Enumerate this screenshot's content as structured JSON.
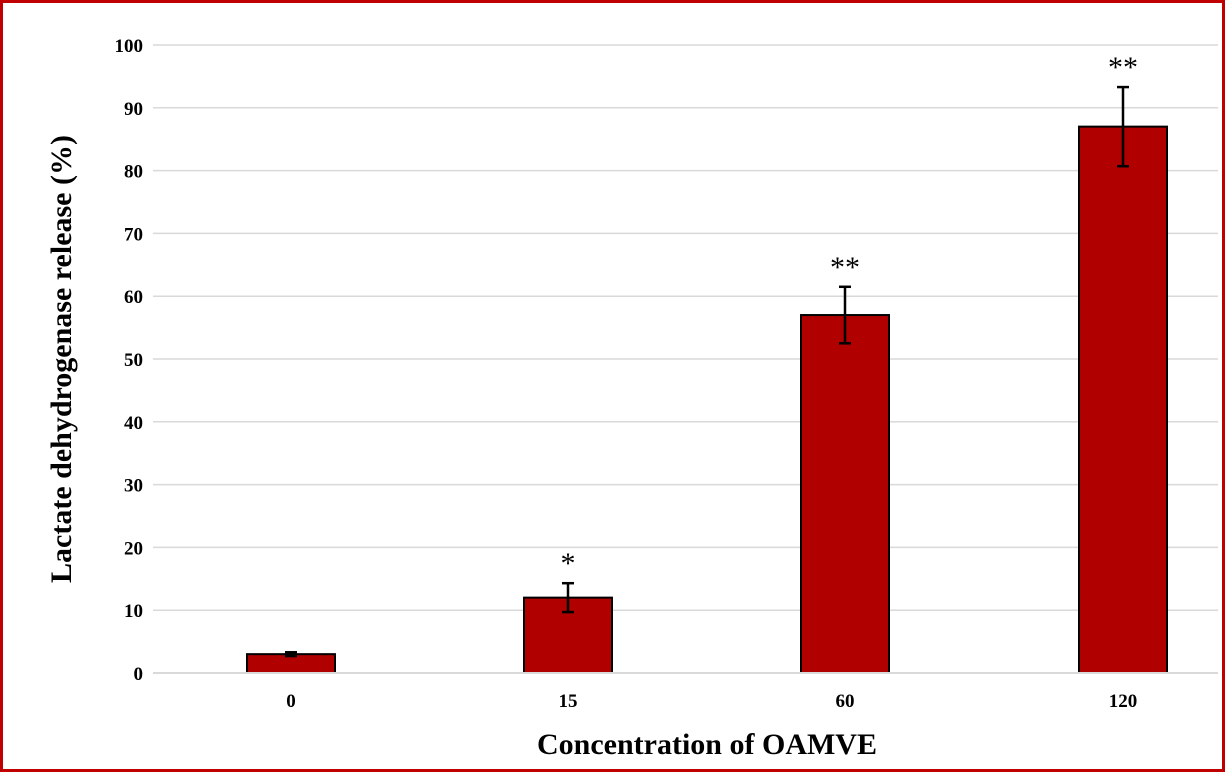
{
  "chart_data": {
    "type": "bar",
    "title": "",
    "xlabel": "Concentration of OAMVE",
    "ylabel": "Lactate dehydrogenase release (%)",
    "categories": [
      "0",
      "15",
      "60",
      "120"
    ],
    "values": [
      3,
      12,
      57,
      87
    ],
    "errors": [
      0.3,
      2.3,
      4.5,
      6.3
    ],
    "significance": [
      "",
      "*",
      "**",
      "**"
    ],
    "ylim": [
      0,
      100
    ],
    "yticks": [
      "0",
      "10",
      "20",
      "30",
      "40",
      "50",
      "60",
      "70",
      "80",
      "90",
      "100"
    ],
    "grid": true,
    "legend": "none",
    "bar_color": "#b00000",
    "frame_color": "#c00000"
  }
}
